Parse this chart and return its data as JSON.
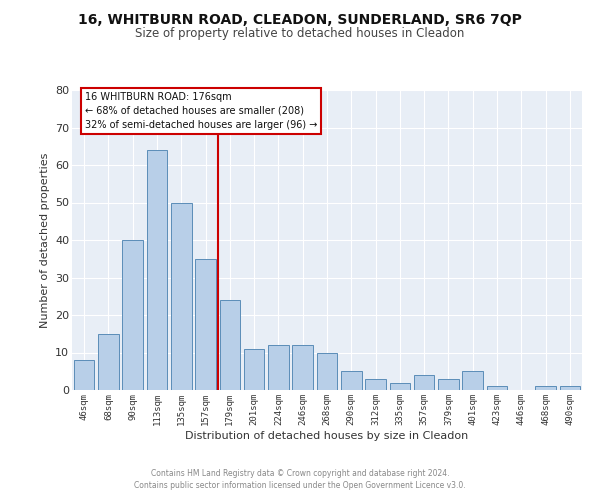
{
  "title1": "16, WHITBURN ROAD, CLEADON, SUNDERLAND, SR6 7QP",
  "title2": "Size of property relative to detached houses in Cleadon",
  "xlabel": "Distribution of detached houses by size in Cleadon",
  "ylabel": "Number of detached properties",
  "bar_labels": [
    "46sqm",
    "68sqm",
    "90sqm",
    "113sqm",
    "135sqm",
    "157sqm",
    "179sqm",
    "201sqm",
    "224sqm",
    "246sqm",
    "268sqm",
    "290sqm",
    "312sqm",
    "335sqm",
    "357sqm",
    "379sqm",
    "401sqm",
    "423sqm",
    "446sqm",
    "468sqm",
    "490sqm"
  ],
  "bar_values": [
    8,
    15,
    40,
    64,
    50,
    35,
    24,
    11,
    12,
    12,
    10,
    5,
    3,
    2,
    4,
    3,
    5,
    1,
    0,
    1,
    1
  ],
  "bar_color": "#b8cfe8",
  "bar_edge_color": "#5b8db8",
  "vline_color": "#cc0000",
  "vline_index": 6,
  "annotation_title": "16 WHITBURN ROAD: 176sqm",
  "annotation_line1": "← 68% of detached houses are smaller (208)",
  "annotation_line2": "32% of semi-detached houses are larger (96) →",
  "annotation_box_color": "#ffffff",
  "annotation_box_edge": "#cc0000",
  "ylim": [
    0,
    80
  ],
  "yticks": [
    0,
    10,
    20,
    30,
    40,
    50,
    60,
    70,
    80
  ],
  "bg_color": "#e8eef6",
  "grid_color": "#ffffff",
  "footer1": "Contains HM Land Registry data © Crown copyright and database right 2024.",
  "footer2": "Contains public sector information licensed under the Open Government Licence v3.0."
}
